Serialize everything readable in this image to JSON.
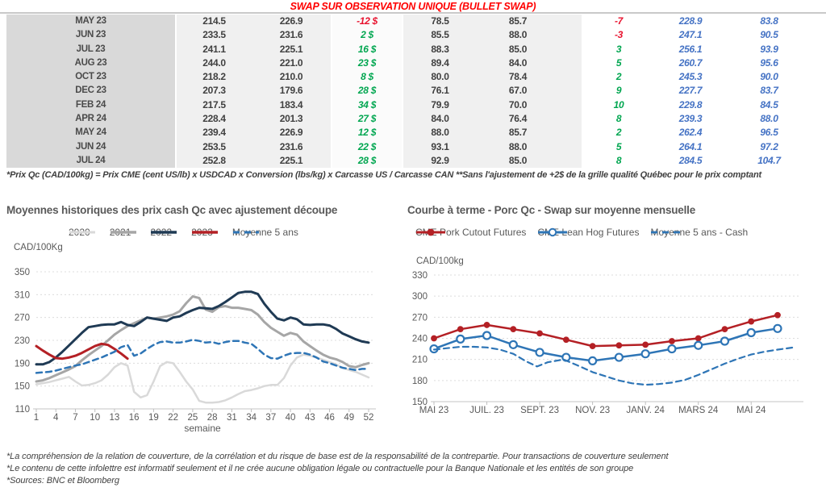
{
  "header": {
    "title": "SWAP SUR OBSERVATION UNIQUE (BULLET SWAP)"
  },
  "table": {
    "rows": [
      [
        "MAY 23",
        "214.5",
        "226.9",
        "-12 $",
        "78.5",
        "85.7",
        "-7",
        "228.9",
        "83.8"
      ],
      [
        "JUN 23",
        "233.5",
        "231.6",
        "2 $",
        "85.5",
        "88.0",
        "-3",
        "247.1",
        "90.5"
      ],
      [
        "JUL 23",
        "241.1",
        "225.1",
        "16 $",
        "88.3",
        "85.0",
        "3",
        "256.1",
        "93.9"
      ],
      [
        "AUG 23",
        "244.0",
        "221.0",
        "23 $",
        "89.4",
        "84.0",
        "5",
        "260.7",
        "95.6"
      ],
      [
        "OCT 23",
        "218.2",
        "210.0",
        "8 $",
        "80.0",
        "78.4",
        "2",
        "245.3",
        "90.0"
      ],
      [
        "DEC 23",
        "207.3",
        "179.6",
        "28 $",
        "76.1",
        "67.0",
        "9",
        "227.7",
        "83.7"
      ],
      [
        "FEB 24",
        "217.5",
        "183.4",
        "34 $",
        "79.9",
        "70.0",
        "10",
        "229.8",
        "84.5"
      ],
      [
        "APR 24",
        "228.4",
        "201.3",
        "27 $",
        "84.0",
        "76.4",
        "8",
        "239.3",
        "88.0"
      ],
      [
        "MAY 24",
        "239.4",
        "226.9",
        "12 $",
        "88.0",
        "85.7",
        "2",
        "262.4",
        "96.5"
      ],
      [
        "JUN 24",
        "253.5",
        "231.6",
        "22 $",
        "93.1",
        "88.0",
        "5",
        "264.1",
        "97.2"
      ],
      [
        "JUL 24",
        "252.8",
        "225.1",
        "28 $",
        "92.9",
        "85.0",
        "8",
        "284.5",
        "104.7"
      ]
    ]
  },
  "table_footnote": "*Prix Qc (CAD/100kg) = Prix CME (cent US/lb) x USDCAD x Conversion (lbs/kg) x Carcasse US / Carcasse CAN **Sans l'ajustement de +2$ de la grille qualité Québec pour le prix comptant",
  "colors": {
    "positive": "#00a650",
    "negative": "#e8112d",
    "futures_blue": "#4472c4",
    "title_red": "#ff0000",
    "navy": "#1f3a54",
    "red_series": "#b42025",
    "dashed_blue": "#2e75b6"
  },
  "chart_data": [
    {
      "type": "line",
      "title": "Moyennes historiques des prix cash Qc avec ajustement découpe",
      "ylabel": "CAD/100Kg",
      "xlabel": "semaine",
      "ylim": [
        110,
        350
      ],
      "yticks": [
        110,
        150,
        190,
        230,
        270,
        310,
        350
      ],
      "xticks": [
        1,
        4,
        7,
        10,
        13,
        16,
        19,
        22,
        25,
        28,
        31,
        34,
        37,
        40,
        43,
        46,
        49,
        52
      ],
      "grid": true,
      "legend_position": "top",
      "series": [
        {
          "name": "2020",
          "color": "#d9d9d9",
          "width": 2.5,
          "x_start": 1,
          "values": [
            153,
            155,
            157,
            160,
            163,
            166,
            158,
            151,
            152,
            155,
            160,
            170,
            183,
            190,
            186,
            140,
            130,
            134,
            158,
            185,
            192,
            190,
            175,
            158,
            144,
            124,
            121,
            121,
            122,
            125,
            130,
            136,
            141,
            143,
            146,
            150,
            152,
            152,
            164,
            186,
            200,
            205,
            203,
            200,
            196,
            192,
            188,
            182,
            178,
            175,
            170,
            165
          ]
        },
        {
          "name": "2021",
          "color": "#a6a6a6",
          "width": 3,
          "x_start": 1,
          "values": [
            158,
            160,
            164,
            169,
            174,
            179,
            185,
            195,
            204,
            212,
            220,
            230,
            240,
            248,
            255,
            260,
            265,
            270,
            268,
            270,
            272,
            275,
            281,
            295,
            307,
            304,
            284,
            280,
            288,
            290,
            287,
            287,
            285,
            283,
            275,
            262,
            252,
            245,
            238,
            243,
            240,
            228,
            220,
            212,
            205,
            200,
            197,
            192,
            185,
            183,
            187,
            190
          ]
        },
        {
          "name": "2022",
          "color": "#1f3a54",
          "width": 3,
          "x_start": 1,
          "values": [
            188,
            188,
            192,
            200,
            210,
            221,
            232,
            243,
            253,
            255,
            257,
            258,
            258,
            262,
            257,
            255,
            262,
            270,
            268,
            266,
            264,
            270,
            272,
            278,
            283,
            287,
            286,
            285,
            290,
            297,
            305,
            313,
            315,
            315,
            311,
            294,
            280,
            268,
            265,
            270,
            267,
            258,
            257,
            258,
            258,
            256,
            250,
            242,
            237,
            232,
            228,
            226
          ]
        },
        {
          "name": "2023",
          "color": "#b42025",
          "width": 3,
          "x_start": 1,
          "values": [
            220,
            212,
            205,
            199,
            198,
            200,
            203,
            208,
            214,
            220,
            224,
            222,
            215,
            207,
            198
          ]
        },
        {
          "name": "Moyenne 5 ans",
          "color": "#2e75b6",
          "width": 2.5,
          "dash": "7 5",
          "x_start": 1,
          "values": [
            173,
            174,
            175,
            177,
            180,
            183,
            186,
            188,
            192,
            196,
            200,
            205,
            210,
            218,
            222,
            203,
            207,
            215,
            222,
            227,
            228,
            226,
            226,
            228,
            231,
            229,
            226,
            227,
            224,
            227,
            229,
            229,
            226,
            224,
            215,
            205,
            199,
            198,
            203,
            207,
            208,
            208,
            205,
            200,
            193,
            190,
            186,
            182,
            180,
            178,
            180,
            180
          ]
        }
      ]
    },
    {
      "type": "line",
      "title": "Courbe à terme - Porc Qc - Swap sur moyenne mensuelle",
      "ylabel": "CAD/100kg",
      "xlabel": "",
      "ylim": [
        150,
        330
      ],
      "yticks": [
        150,
        180,
        210,
        240,
        270,
        300,
        330
      ],
      "xticks_labeled": [
        {
          "v": 0,
          "label": "MAI 23"
        },
        {
          "v": 2,
          "label": "JUIL. 23"
        },
        {
          "v": 4,
          "label": "SEPT. 23"
        },
        {
          "v": 6,
          "label": "NOV. 23"
        },
        {
          "v": 8,
          "label": "JANV. 24"
        },
        {
          "v": 10,
          "label": "MARS 24"
        },
        {
          "v": 12,
          "label": "MAI 24"
        }
      ],
      "grid": true,
      "legend_position": "top",
      "series": [
        {
          "name": "CME Pork Cutout Futures",
          "color": "#b42025",
          "width": 2.5,
          "marker": "dot",
          "x_start": 0,
          "values": [
            240,
            253,
            259,
            253,
            247,
            238,
            229,
            230,
            231,
            236,
            240,
            253,
            264,
            273
          ]
        },
        {
          "name": "CME Lean Hog Futures",
          "color": "#2e75b6",
          "width": 2.5,
          "marker": "circle",
          "x_start": 0,
          "values": [
            225,
            239,
            244,
            231,
            220,
            213,
            208,
            213,
            218,
            225,
            230,
            236,
            248,
            254
          ]
        },
        {
          "name": "Moyenne 5 ans - Cash",
          "color": "#2e75b6",
          "width": 2.2,
          "dash": "7 5",
          "x": [
            0,
            0.5,
            1,
            1.5,
            2,
            2.5,
            3,
            3.5,
            3.9,
            4.3,
            4.9,
            5.4,
            6,
            6.5,
            7,
            7.5,
            8,
            8.5,
            9,
            9.5,
            10,
            10.5,
            11,
            11.5,
            12,
            12.5,
            13,
            13.6
          ],
          "values": [
            224,
            226,
            228,
            228,
            227,
            224,
            218,
            207,
            200,
            206,
            210,
            202,
            192,
            186,
            180,
            176,
            174,
            175,
            177,
            181,
            188,
            196,
            204,
            211,
            217,
            221,
            224,
            227
          ]
        }
      ]
    }
  ],
  "footer": {
    "lines": [
      "*La compréhension de la relation de couverture, de la corrélation et du risque de base est de la responsabilité de la contrepartie. Pour transactions de couverture seulement",
      "*Le contenu de cette infolettre est informatif seulement et il ne crée aucune obligation légale ou contractuelle pour la Banque Nationale et les entités de son groupe",
      "*Sources: BNC et Bloomberg"
    ]
  }
}
